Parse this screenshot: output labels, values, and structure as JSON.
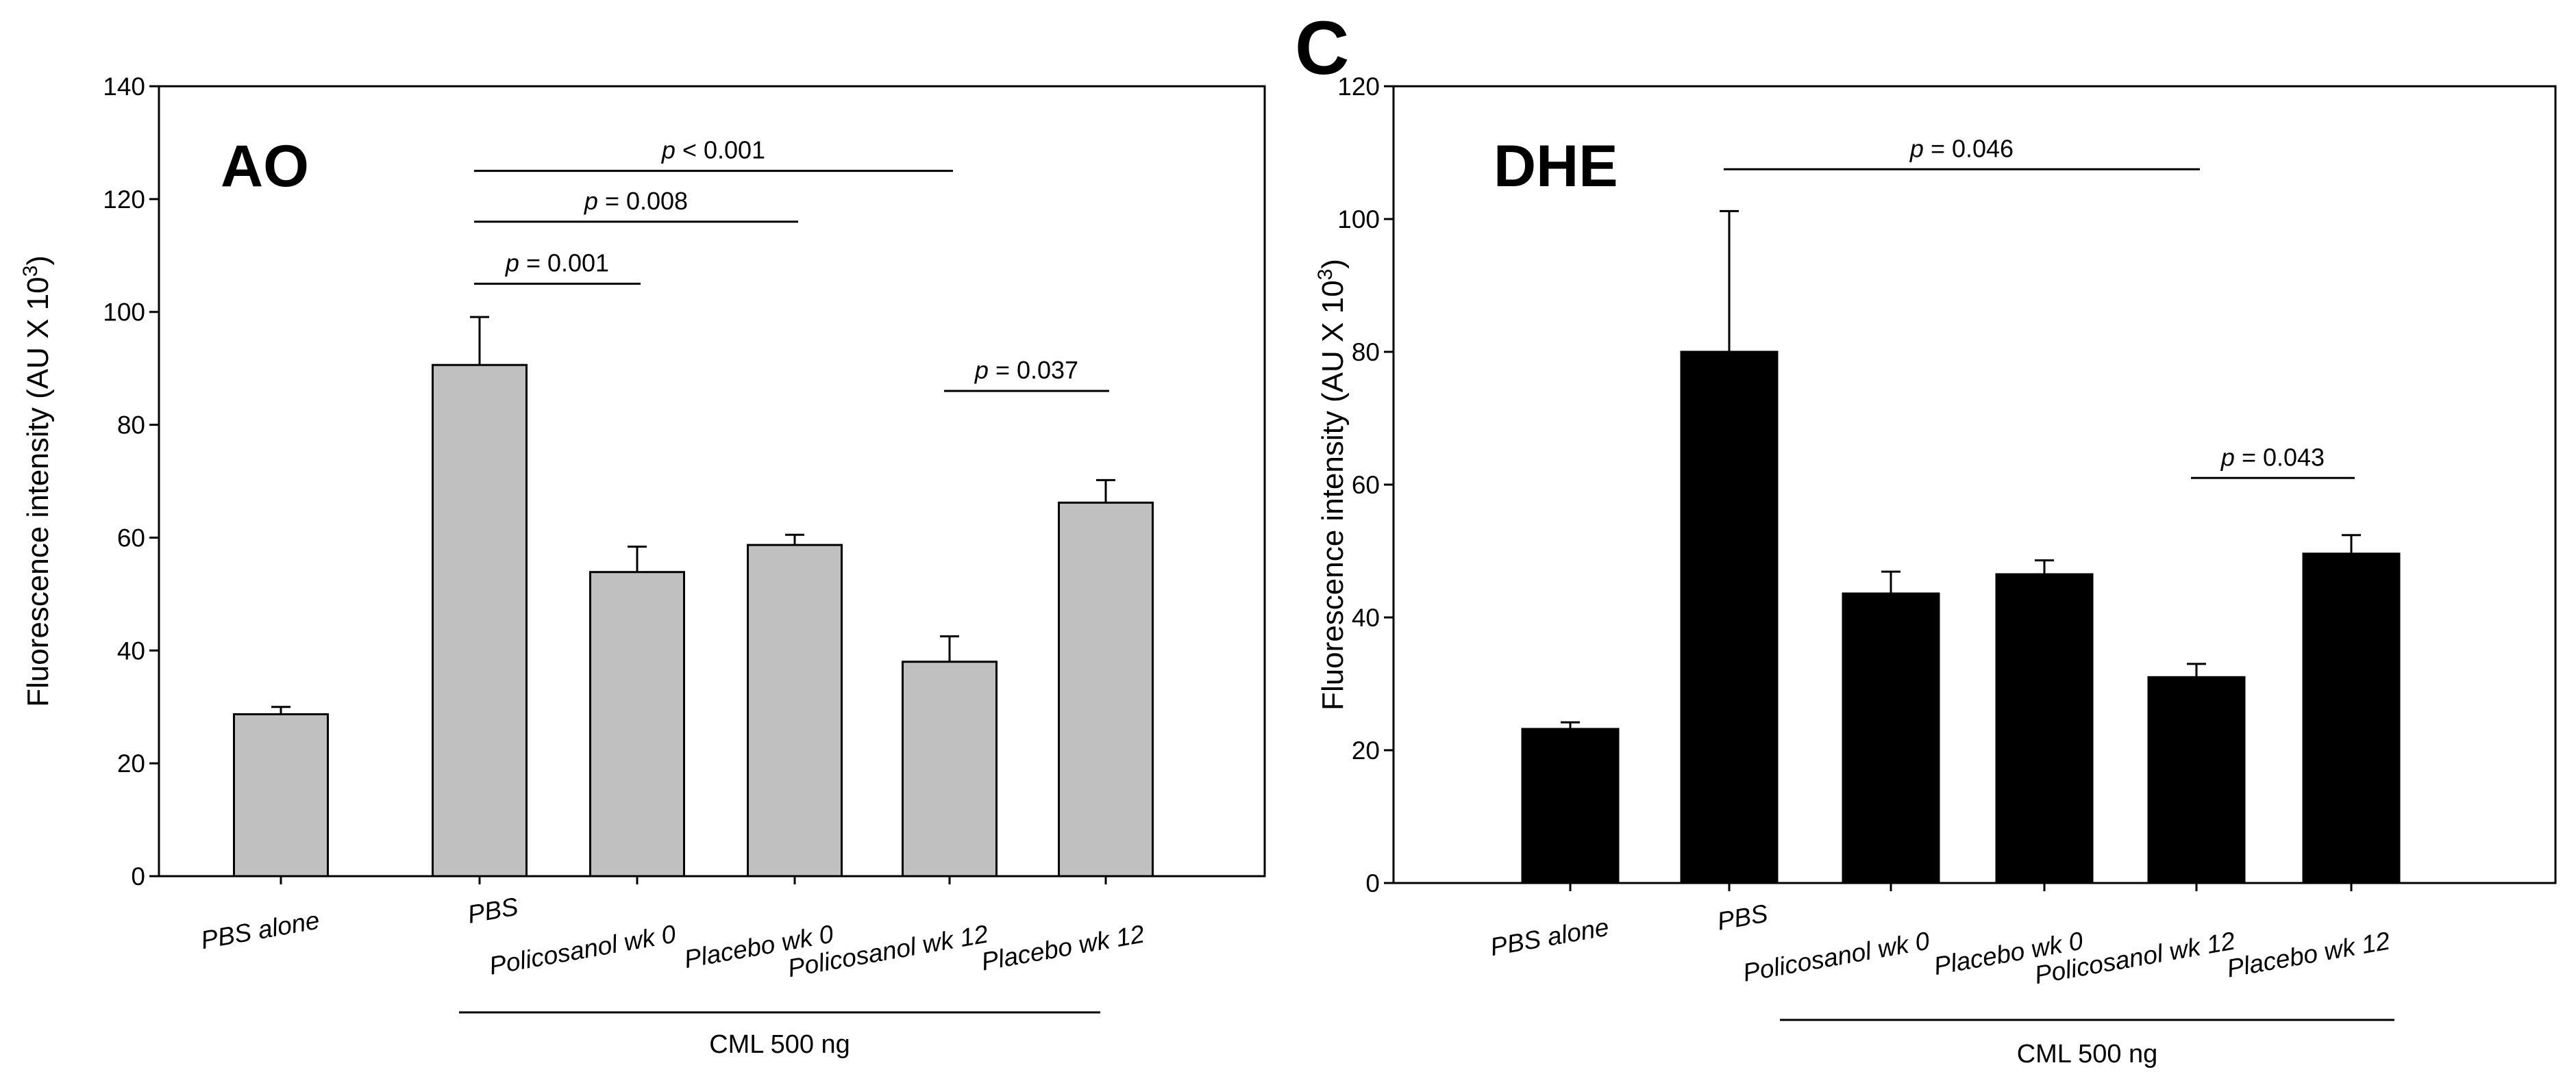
{
  "chart_data": [
    {
      "type": "bar",
      "panel_letter": "",
      "inset_title": "AO",
      "ylabel": "Fluorescence intensity (AU X 10",
      "ylabel_sup": "3",
      "ylabel_tail": ")",
      "ylim": [
        0,
        140
      ],
      "yticks": [
        0,
        20,
        40,
        60,
        80,
        100,
        120,
        140
      ],
      "categories": [
        "PBS alone",
        "PBS",
        "Policosanol wk 0",
        "Placebo wk 0",
        "Policosanol wk 12",
        "Placebo wk 12"
      ],
      "values": [
        28.7,
        90.6,
        53.9,
        58.7,
        38.0,
        66.2
      ],
      "errors": [
        1.3,
        8.5,
        4.5,
        1.8,
        4.5,
        4.0
      ],
      "bar_color": "#c0c0c0",
      "group_label": "CML 500 ng",
      "group_span": [
        1,
        5
      ],
      "comparisons": [
        {
          "from": 1,
          "to": 4,
          "p_label": "p",
          "p_value": " < 0.001",
          "y": 125
        },
        {
          "from": 1,
          "to": 3,
          "p_label": "p",
          "p_value": " = 0.008",
          "y": 116
        },
        {
          "from": 1,
          "to": 2,
          "p_label": "p",
          "p_value": " = 0.001",
          "y": 105
        },
        {
          "from": 4,
          "to": 5,
          "p_label": "p",
          "p_value": " = 0.037",
          "y": 86
        }
      ]
    },
    {
      "type": "bar",
      "panel_letter": "C",
      "inset_title": "DHE",
      "ylabel": "Fluorescence intensity (AU X 10",
      "ylabel_sup": "3",
      "ylabel_tail": ")",
      "ylim": [
        0,
        120
      ],
      "yticks": [
        0,
        20,
        40,
        60,
        80,
        100,
        120
      ],
      "categories": [
        "PBS alone",
        "PBS",
        "Policosanol wk 0",
        "Placebo wk 0",
        "Policosanol wk 12",
        "Placebo wk 12"
      ],
      "values": [
        23.2,
        80.0,
        43.6,
        46.5,
        31.0,
        49.6
      ],
      "errors": [
        1.0,
        21.2,
        3.3,
        2.1,
        2.0,
        2.8
      ],
      "bar_color": "#000000",
      "group_label": "CML 500 ng",
      "group_span": [
        1,
        5
      ],
      "comparisons": [
        {
          "from": 1,
          "to": 4,
          "p_label": "p",
          "p_value": " = 0.046",
          "y": 107.5
        },
        {
          "from": 4,
          "to": 5,
          "p_label": "p",
          "p_value": " = 0.043",
          "y": 61
        }
      ]
    }
  ]
}
